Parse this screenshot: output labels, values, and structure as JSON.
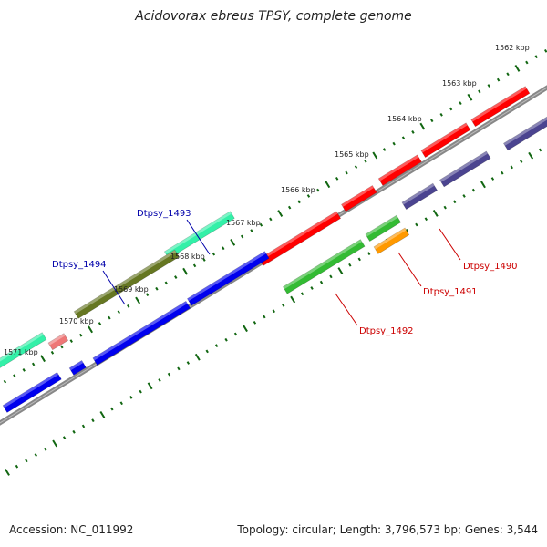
{
  "title": "Acidovorax ebreus TPSY, complete genome",
  "footer": {
    "accession": "Accession: NC_011992",
    "summary": "Topology: circular; Length: 3,796,573 bp; Genes: 3,544"
  },
  "ticks": [
    "1562 kbp",
    "1563 kbp",
    "1564 kbp",
    "1565 kbp",
    "1566 kbp",
    "1567 kbp",
    "1568 kbp",
    "1569 kbp",
    "1570 kbp",
    "1571 kbp"
  ],
  "gene_labels": [
    {
      "text": "Dtpsy_1490",
      "color": "#cc0000"
    },
    {
      "text": "Dtpsy_1491",
      "color": "#cc0000"
    },
    {
      "text": "Dtpsy_1492",
      "color": "#cc0000"
    },
    {
      "text": "Dtpsy_1493",
      "color": "#0000aa"
    },
    {
      "text": "Dtpsy_1494",
      "color": "#0000aa"
    }
  ],
  "colors": {
    "red": "#ff0000",
    "blue": "#0000ee",
    "purple": "#4b4490",
    "green": "#33bb33",
    "orange": "#ff9900",
    "teal": "#33f0a8",
    "olive": "#667722",
    "pink": "#ee7777",
    "backbone": "#888888",
    "tick": "#116611"
  }
}
